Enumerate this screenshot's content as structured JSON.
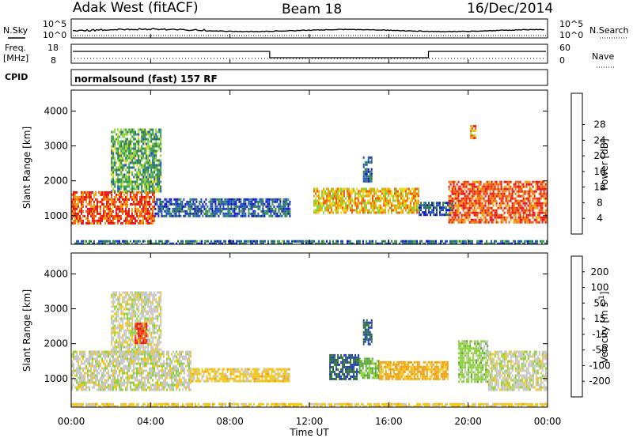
{
  "header": {
    "station": "Adak West (fitACF)",
    "beam": "Beam 18",
    "date": "16/Dec/2014"
  },
  "status_panels": {
    "nsky_label": "N.Sky",
    "nsearch_label": "N.Search",
    "freq_label_1": "Freq.",
    "freq_label_2": "[MHz]",
    "nave_label": "Nave",
    "cpid_label": "CPID",
    "cpid_value": "normalsound (fast) 157 RF",
    "noise_left_ticks": [
      "10^5",
      "10^0"
    ],
    "noise_right_ticks": [
      "10^5",
      "10^0"
    ],
    "freq_ticks": [
      "18",
      "8"
    ],
    "nave_ticks": [
      "60",
      "0"
    ]
  },
  "chart_data": [
    {
      "type": "heatmap",
      "panel": "power",
      "ylabel": "Slant Range [km]",
      "xlabel": "Time UT",
      "x_ticks": [
        "00:00",
        "04:00",
        "08:00",
        "12:00",
        "16:00",
        "20:00",
        "00:00"
      ],
      "y_ticks": [
        1000,
        2000,
        3000,
        4000
      ],
      "xlim": [
        0,
        24
      ],
      "ylim": [
        180,
        4600
      ],
      "colorbar": {
        "label": "Power [dB]",
        "ticks": [
          4,
          8,
          12,
          16,
          20,
          24,
          28
        ],
        "colors": [
          "#1414d2",
          "#2050c8",
          "#2e7c4a",
          "#3a9e5a",
          "#8cd23a",
          "#f0d81e",
          "#f0a010",
          "#f06010",
          "#e81818"
        ]
      },
      "echo_regions": [
        {
          "t": [
            0.0,
            4.2
          ],
          "range_km": [
            800,
            1700
          ],
          "power_db": 26
        },
        {
          "t": [
            2.0,
            4.5
          ],
          "range_km": [
            1700,
            3500
          ],
          "power_db": 12
        },
        {
          "t": [
            4.2,
            11.0
          ],
          "range_km": [
            1000,
            1500
          ],
          "power_db": 6
        },
        {
          "t": [
            12.2,
            17.5
          ],
          "range_km": [
            1100,
            1800
          ],
          "power_db": 20
        },
        {
          "t": [
            14.7,
            15.1
          ],
          "range_km": [
            2000,
            2700
          ],
          "power_db": 6
        },
        {
          "t": [
            17.5,
            19.2
          ],
          "range_km": [
            1000,
            1400
          ],
          "power_db": 6
        },
        {
          "t": [
            19.0,
            24.0
          ],
          "range_km": [
            800,
            2000
          ],
          "power_db": 26
        },
        {
          "t": [
            20.1,
            20.4
          ],
          "range_km": [
            3200,
            3600
          ],
          "power_db": 22
        },
        {
          "t": [
            0.0,
            24.0
          ],
          "range_km": [
            200,
            300
          ],
          "power_db": 8
        }
      ]
    },
    {
      "type": "heatmap",
      "panel": "velocity",
      "ylabel": "Slant Range [km]",
      "xlabel": "Time UT",
      "x_ticks": [
        "00:00",
        "04:00",
        "08:00",
        "12:00",
        "16:00",
        "20:00",
        "00:00"
      ],
      "y_ticks": [
        1000,
        2000,
        3000,
        4000
      ],
      "xlim": [
        0,
        24
      ],
      "ylim": [
        180,
        4600
      ],
      "colorbar": {
        "label": "Velocity [m s",
        "label_exp": "-1",
        "label_end": "]",
        "ticks": [
          200,
          100,
          50,
          15,
          -15,
          -50,
          -100,
          -200
        ],
        "colors": [
          "#1e3cb4",
          "#2e6e3a",
          "#5aa83a",
          "#8cd23a",
          "#c8c8c8",
          "#f0c81e",
          "#f0a010",
          "#f06010",
          "#e81818"
        ]
      },
      "echo_regions": [
        {
          "t": [
            0.0,
            6.0
          ],
          "range_km": [
            700,
            1800
          ],
          "velocity": 0
        },
        {
          "t": [
            2.0,
            4.5
          ],
          "range_km": [
            1700,
            3500
          ],
          "velocity": 0
        },
        {
          "t": [
            3.2,
            3.8
          ],
          "range_km": [
            2000,
            2600
          ],
          "velocity": -200
        },
        {
          "t": [
            6.0,
            11.0
          ],
          "range_km": [
            900,
            1300
          ],
          "velocity": -30
        },
        {
          "t": [
            13.0,
            14.5
          ],
          "range_km": [
            1000,
            1700
          ],
          "velocity": 200
        },
        {
          "t": [
            14.5,
            15.5
          ],
          "range_km": [
            1000,
            1600
          ],
          "velocity": 60
        },
        {
          "t": [
            15.5,
            19.0
          ],
          "range_km": [
            1000,
            1500
          ],
          "velocity": -60
        },
        {
          "t": [
            14.7,
            15.1
          ],
          "range_km": [
            2000,
            2700
          ],
          "velocity": 200
        },
        {
          "t": [
            19.5,
            21.0
          ],
          "range_km": [
            900,
            2100
          ],
          "velocity": 30
        },
        {
          "t": [
            21.0,
            24.0
          ],
          "range_km": [
            700,
            1800
          ],
          "velocity": 0
        },
        {
          "t": [
            0.0,
            24.0
          ],
          "range_km": [
            200,
            300
          ],
          "velocity": -30
        }
      ]
    }
  ]
}
